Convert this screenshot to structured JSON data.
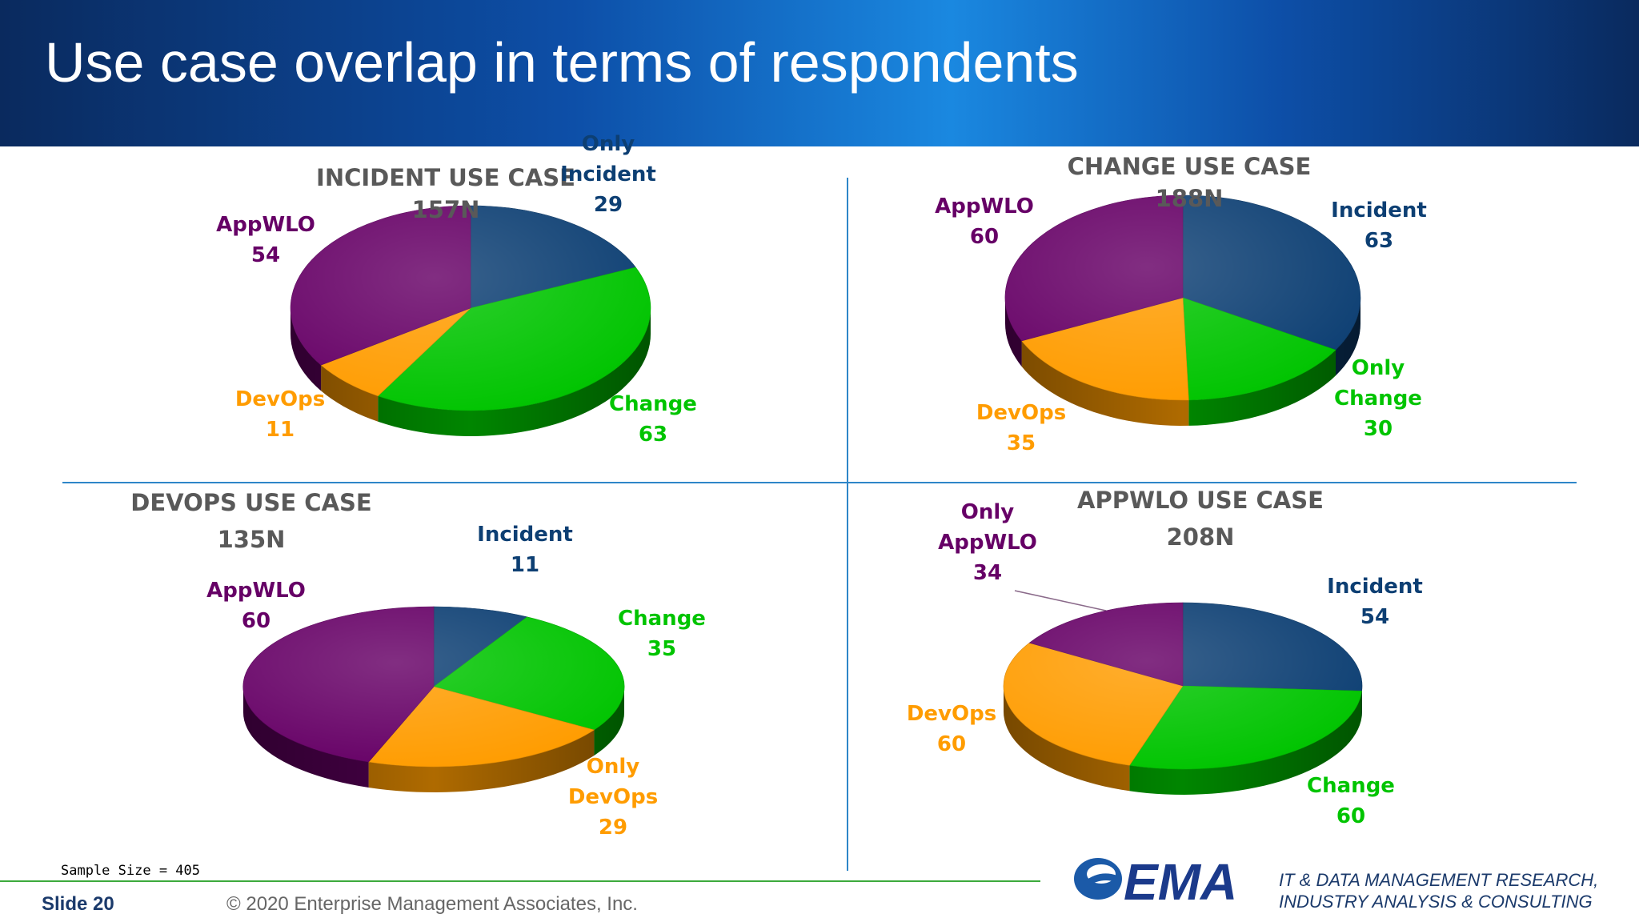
{
  "title": "Use case overlap in terms of respondents",
  "colors": {
    "incident": "#0d3f73",
    "change": "#00c400",
    "devops": "#ff9c00",
    "appwlo": "#660066",
    "header_dark": "#0a2a5e",
    "header_light": "#1a88e0"
  },
  "chart_data": [
    {
      "type": "pie",
      "title": "INCIDENT USE CASE",
      "subtitle": "157N",
      "slices": [
        {
          "label": "Only Incident",
          "value": 29,
          "color": "#0d3f73"
        },
        {
          "label": "Change",
          "value": 63,
          "color": "#00c400"
        },
        {
          "label": "DevOps",
          "value": 11,
          "color": "#ff9c00"
        },
        {
          "label": "AppWLO",
          "value": 54,
          "color": "#660066"
        }
      ]
    },
    {
      "type": "pie",
      "title": "CHANGE USE CASE",
      "subtitle": "188N",
      "slices": [
        {
          "label": "Incident",
          "value": 63,
          "color": "#0d3f73"
        },
        {
          "label": "Only Change",
          "value": 30,
          "color": "#00c400"
        },
        {
          "label": "DevOps",
          "value": 35,
          "color": "#ff9c00"
        },
        {
          "label": "AppWLO",
          "value": 60,
          "color": "#660066"
        }
      ]
    },
    {
      "type": "pie",
      "title": "DEVOPS USE CASE",
      "subtitle": "135N",
      "slices": [
        {
          "label": "Incident",
          "value": 11,
          "color": "#0d3f73"
        },
        {
          "label": "Change",
          "value": 35,
          "color": "#00c400"
        },
        {
          "label": "Only DevOps",
          "value": 29,
          "color": "#ff9c00"
        },
        {
          "label": "AppWLO",
          "value": 60,
          "color": "#660066"
        }
      ]
    },
    {
      "type": "pie",
      "title": "APPWLO USE CASE",
      "subtitle": "208N",
      "slices": [
        {
          "label": "Incident",
          "value": 54,
          "color": "#0d3f73"
        },
        {
          "label": "Change",
          "value": 60,
          "color": "#00c400"
        },
        {
          "label": "DevOps",
          "value": 60,
          "color": "#ff9c00"
        },
        {
          "label": "Only AppWLO",
          "value": 34,
          "color": "#660066"
        }
      ]
    }
  ],
  "footer": {
    "sample_size": "Sample Size = 405",
    "slide_number": "Slide  20",
    "copyright": "© 2020 Enterprise Management Associates, Inc.",
    "logo_text": "EMA",
    "tagline_line1": "IT & DATA MANAGEMENT RESEARCH,",
    "tagline_line2": "INDUSTRY ANALYSIS & CONSULTING"
  }
}
